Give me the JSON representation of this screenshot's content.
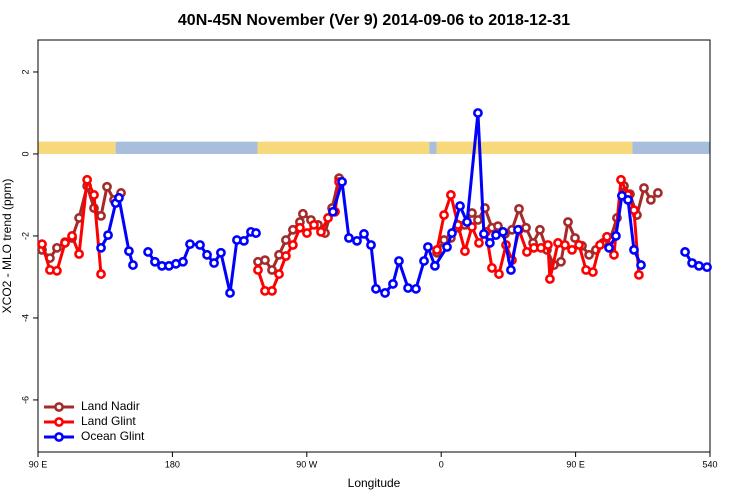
{
  "chart_data": {
    "type": "line",
    "title": "40N-45N November (Ver 9)   2014-09-06 to 2018-12-31",
    "x_label": "Longitude",
    "y_label": "XCO2 - MLO trend (ppm)",
    "xlim": [
      90,
      540
    ],
    "ylim": [
      -7.27,
      2.78
    ],
    "xticks": [
      {
        "value": 90,
        "label": "90 E"
      },
      180,
      {
        "value": 270,
        "label": "90 W"
      },
      {
        "value": 360,
        "label": "0"
      },
      {
        "value": 450,
        "label": "90 E"
      },
      540
    ],
    "yticks": [
      2,
      0,
      -2,
      -4,
      -6
    ],
    "legend": "bottom-left",
    "strip": {
      "ylim": [
        0,
        0.3
      ],
      "segments": [
        {
          "x": [
            90,
            142
          ],
          "color": "#f7d87a"
        },
        {
          "x": [
            142,
            237
          ],
          "color": "#a8bedc"
        },
        {
          "x": [
            237,
            352
          ],
          "color": "#f7d87a"
        },
        {
          "x": [
            352,
            357
          ],
          "color": "#a8bedc"
        },
        {
          "x": [
            357,
            488
          ],
          "color": "#f7d87a"
        },
        {
          "x": [
            488,
            540
          ],
          "color": "#a8bedc"
        }
      ]
    },
    "series": [
      {
        "name": "Land Nadir",
        "color": "#a52a2a",
        "x": [
          92.7,
          98.0,
          102.7,
          108.1,
          112.8,
          117.5,
          122.9,
          127.5,
          132.2,
          136.2,
          140.9,
          145.6,
          null,
          237.3,
          242.0,
          246.7,
          251.4,
          256.0,
          260.7,
          265.4,
          267.4,
          272.8,
          277.5,
          282.2,
          286.9,
          291.6,
          null,
          357.2,
          361.9,
          366.5,
          371.2,
          375.9,
          380.6,
          384.6,
          389.3,
          394.0,
          398.0,
          402.7,
          407.4,
          412.1,
          416.8,
          421.5,
          426.1,
          430.8,
          435.5,
          440.2,
          444.9,
          449.6,
          454.3,
          459.0,
          463.6,
          468.3,
          473.0,
          477.7,
          482.4,
          486.4,
          491.1,
          495.8,
          500.4,
          505.1
        ],
        "values": [
          -2.34,
          -2.54,
          -2.29,
          -2.15,
          -2.05,
          -1.56,
          -0.78,
          -1.32,
          -1.51,
          -0.8,
          -1.12,
          -0.95,
          null,
          -2.63,
          -2.59,
          -2.83,
          -2.46,
          -2.1,
          -1.85,
          -1.66,
          -1.46,
          -1.61,
          -1.73,
          -1.93,
          -1.32,
          -0.59,
          null,
          -2.41,
          -2.1,
          -2.05,
          -1.8,
          -1.73,
          -1.44,
          -1.61,
          -1.32,
          -1.8,
          -1.76,
          -1.95,
          -1.85,
          -1.34,
          -1.8,
          -2.17,
          -1.85,
          -2.34,
          -2.71,
          -2.63,
          -1.66,
          -2.05,
          -2.24,
          -2.46,
          -2.34,
          -2.17,
          -2.1,
          -1.56,
          -0.78,
          -0.98,
          -1.49,
          -0.83,
          -1.12,
          -0.95
        ]
      },
      {
        "name": "Land Glint",
        "color": "#ff0000",
        "x": [
          92.7,
          98.0,
          102.7,
          108.1,
          112.8,
          117.5,
          122.9,
          127.5,
          132.2,
          null,
          237.3,
          242.0,
          246.7,
          251.4,
          256.0,
          260.7,
          265.4,
          270.1,
          274.8,
          279.5,
          284.2,
          288.9,
          291.6,
          null,
          357.2,
          361.9,
          366.5,
          371.2,
          375.9,
          380.6,
          385.3,
          390.0,
          394.0,
          398.7,
          403.4,
          407.4,
          412.1,
          417.4,
          422.1,
          426.8,
          431.5,
          432.8,
          438.2,
          442.9,
          447.6,
          452.3,
          457.0,
          461.6,
          466.3,
          471.0,
          475.7,
          480.4,
          485.1,
          489.1,
          492.4
        ],
        "values": [
          -2.2,
          -2.83,
          -2.85,
          -2.17,
          -2.0,
          -2.44,
          -0.63,
          -1.0,
          -2.93,
          null,
          -2.83,
          -3.34,
          -3.34,
          -2.93,
          -2.49,
          -2.22,
          -1.8,
          -1.93,
          -1.73,
          -1.9,
          -1.56,
          -1.41,
          -0.68,
          null,
          -2.34,
          -1.49,
          -1.0,
          -1.73,
          -2.37,
          -1.78,
          -2.17,
          -1.9,
          -2.78,
          -2.93,
          -2.22,
          -2.59,
          -1.85,
          -2.39,
          -2.29,
          -2.29,
          -2.22,
          -3.05,
          -2.17,
          -2.22,
          -2.34,
          -2.22,
          -2.83,
          -2.88,
          -2.22,
          -2.02,
          -2.46,
          -0.63,
          -1.0,
          -1.37,
          -2.95
        ]
      },
      {
        "name": "Ocean Glint",
        "color": "#0000ff",
        "x": [
          132.2,
          136.9,
          142.0,
          144.2,
          150.9,
          153.6,
          null,
          163.7,
          168.3,
          173.0,
          177.7,
          182.4,
          187.1,
          191.8,
          198.5,
          203.2,
          207.9,
          212.5,
          218.6,
          223.2,
          227.9,
          232.6,
          236.0,
          null,
          287.5,
          293.6,
          298.2,
          303.6,
          308.3,
          313.0,
          316.3,
          322.4,
          327.7,
          331.7,
          337.8,
          343.1,
          348.5,
          351.1,
          355.8,
          363.9,
          367.2,
          372.6,
          377.3,
          384.6,
          388.6,
          392.6,
          396.7,
          401.4,
          406.7,
          411.4,
          null,
          472.4,
          477.0,
          481.0,
          485.1,
          489.1,
          493.8,
          null,
          523.3,
          528.0,
          532.6,
          538.0
        ],
        "values": [
          -2.29,
          -1.98,
          -1.2,
          -1.07,
          -2.37,
          -2.71,
          null,
          -2.39,
          -2.63,
          -2.73,
          -2.73,
          -2.68,
          -2.63,
          -2.2,
          -2.22,
          -2.46,
          -2.66,
          -2.41,
          -3.39,
          -2.1,
          -2.12,
          -1.9,
          -1.93,
          null,
          -1.41,
          -0.68,
          -2.05,
          -2.12,
          -1.95,
          -2.22,
          -3.29,
          -3.39,
          -3.17,
          -2.61,
          -3.27,
          -3.29,
          -2.61,
          -2.27,
          -2.73,
          -2.27,
          -1.93,
          -1.27,
          -1.66,
          1.0,
          -1.95,
          -2.17,
          -1.98,
          -1.9,
          -2.83,
          -1.85,
          null,
          -2.29,
          -2.0,
          -1.02,
          -1.12,
          -2.34,
          -2.71,
          null,
          -2.39,
          -2.66,
          -2.73,
          -2.76
        ]
      }
    ]
  }
}
